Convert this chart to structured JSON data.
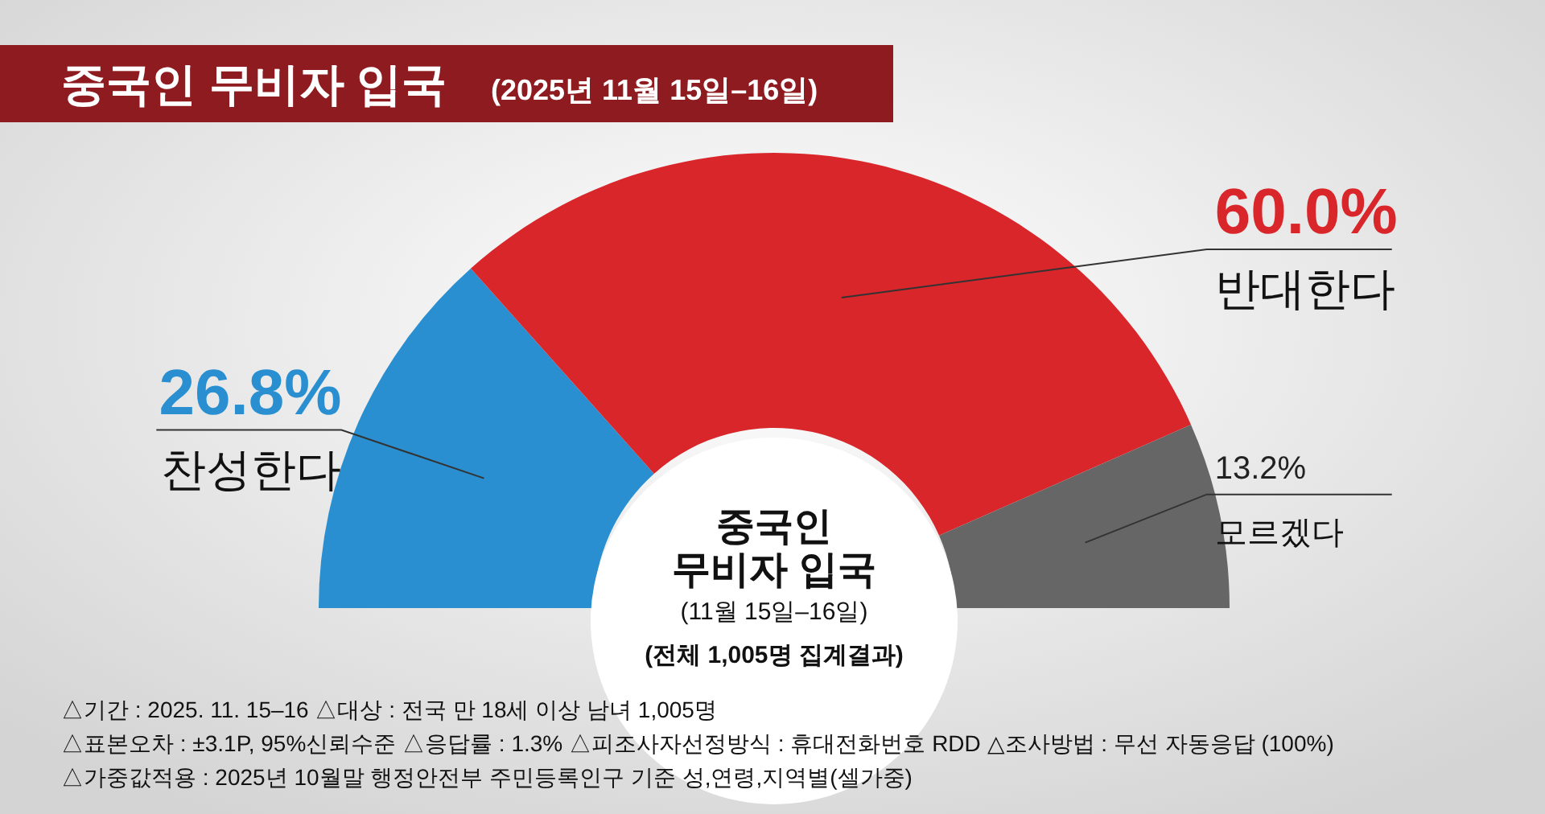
{
  "chart_data": {
    "type": "donut",
    "title": "중국인 무비자 입국",
    "subtitle": "(2025년 11월 15일–16일)",
    "categories": [
      "찬성한다",
      "반대한다",
      "모르겠다"
    ],
    "values": [
      26.8,
      60.0,
      13.2
    ],
    "colors": [
      "#2a8fd0",
      "#d9262b",
      "#666666"
    ],
    "value_labels": [
      "26.8%",
      "60.0%",
      "13.2%"
    ],
    "annotations": [
      "중국인",
      "무비자 입국",
      "(11월 15일–16일)",
      "(전체 1,005명 집계결과)",
      "△기간 : 2025. 11. 15–16   △대상 : 전국 만 18세 이상 남녀 1,005명",
      "△표본오차 : ±3.1P, 95%신뢰수준   △응답률 : 1.3%   △피조사자선정방식 : 휴대전화번호 RDD   △조사방법 : 무선 자동응답 (100%)",
      "△가중값적용 : 2025년 10월말 행정안전부 주민등록인구 기준 성,연령,지역별(셀가중)"
    ]
  }
}
